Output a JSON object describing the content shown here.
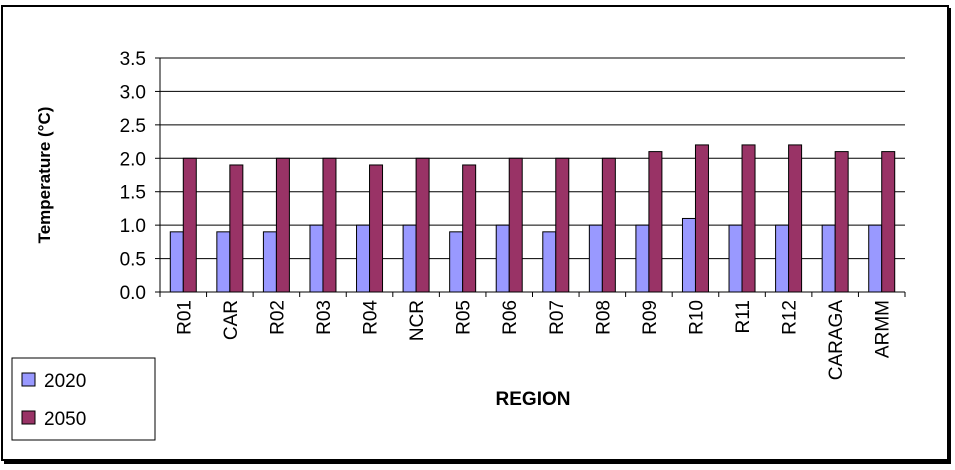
{
  "chart_data": {
    "type": "bar",
    "x_label": "REGION",
    "y_label": "Temperature (°C)",
    "categories": [
      "R01",
      "CAR",
      "R02",
      "R03",
      "R04",
      "NCR",
      "R05",
      "R06",
      "R07",
      "R08",
      "R09",
      "R10",
      "R11",
      "R12",
      "CARAGA",
      "ARMM"
    ],
    "series": [
      {
        "name": "2020",
        "color": "#9999ff",
        "values": [
          0.9,
          0.9,
          0.9,
          1.0,
          1.0,
          1.0,
          0.9,
          1.0,
          0.9,
          1.0,
          1.0,
          1.1,
          1.0,
          1.0,
          1.0,
          1.0
        ]
      },
      {
        "name": "2050",
        "color": "#993366",
        "values": [
          2.0,
          1.9,
          2.0,
          2.0,
          1.9,
          2.0,
          1.9,
          2.0,
          2.0,
          2.0,
          2.1,
          2.2,
          2.2,
          2.2,
          2.1,
          2.1
        ]
      }
    ],
    "ylim": [
      0,
      3.5
    ],
    "yticks": [
      {
        "value": 0,
        "label": "0.0"
      },
      0.5,
      {
        "value": 1,
        "label": "1.0"
      },
      1.5,
      {
        "value": 2,
        "label": "2.0"
      },
      2.5,
      {
        "value": 3,
        "label": "3.0"
      },
      3.5
    ],
    "grid": true,
    "legend": "left"
  }
}
